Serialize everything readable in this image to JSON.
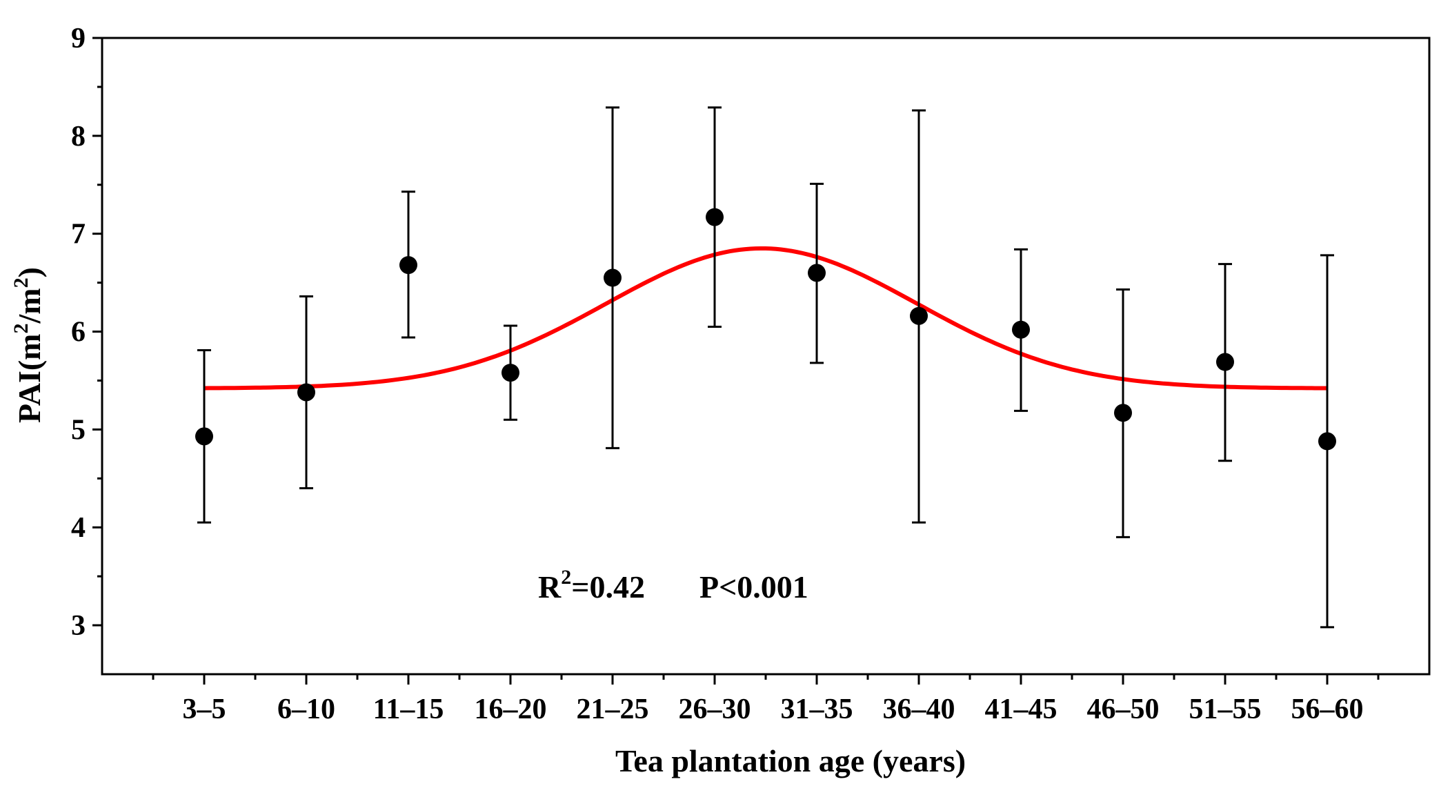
{
  "chart_data": {
    "type": "scatter",
    "title": "",
    "xlabel": "Tea plantation age (years)",
    "ylabel_text": "PAI(m",
    "ylabel_sup1": "2",
    "ylabel_mid": "/m",
    "ylabel_sup2": "2",
    "ylabel_end": ")",
    "categories": [
      "3–5",
      "6–10",
      "11–15",
      "16–20",
      "21–25",
      "26–30",
      "31–35",
      "36–40",
      "41–45",
      "46–50",
      "51–55",
      "56–60"
    ],
    "ylim": [
      2.5,
      9
    ],
    "yticks": [
      3,
      4,
      5,
      6,
      7,
      8,
      9
    ],
    "ytick_labels": [
      "3",
      "4",
      "5",
      "6",
      "7",
      "8",
      "9"
    ],
    "series": [
      {
        "name": "PAI",
        "values": [
          4.93,
          5.38,
          6.68,
          5.58,
          6.55,
          7.17,
          6.6,
          6.16,
          6.02,
          5.17,
          5.69,
          4.88
        ],
        "err_low": [
          4.05,
          4.4,
          5.94,
          5.1,
          4.81,
          6.05,
          5.68,
          4.05,
          5.19,
          3.9,
          4.68,
          2.98
        ],
        "err_high": [
          5.81,
          6.36,
          7.43,
          6.06,
          8.29,
          8.29,
          7.51,
          8.26,
          6.84,
          6.43,
          6.69,
          6.78
        ],
        "color": "#000000"
      }
    ],
    "fit": {
      "type": "gaussian",
      "color": "#ff0000",
      "baseline": 5.42,
      "amplitude": 1.43,
      "center_index": 5.46,
      "sigma_index": 1.52
    },
    "annotation": {
      "r_label": "R",
      "r_sup": "2",
      "r_value": "=0.42",
      "p_text": "P<0.001"
    },
    "grid": false
  }
}
